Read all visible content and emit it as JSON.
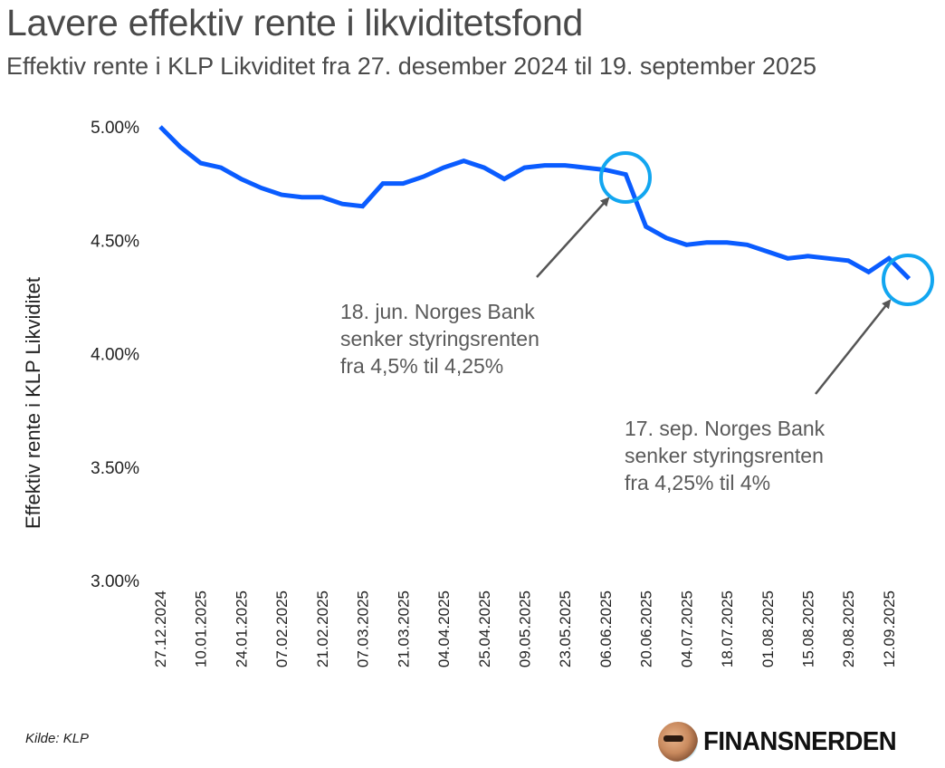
{
  "header": {
    "title": "Lavere effektiv rente i likviditetsfond",
    "subtitle": "Effektiv rente i KLP Likviditet fra 27. desember 2024  til 19. september 2025"
  },
  "footer": {
    "source": "Kilde: KLP",
    "brand": "FINANSNERDEN",
    "brand_icon": "avatar-logo"
  },
  "colors": {
    "line": "#0a5cff",
    "highlight_circle": "#12a6f0",
    "arrow": "#555555",
    "text": "#222222",
    "annotation_text": "#5a5a5a"
  },
  "chart_data": {
    "type": "line",
    "title": "Lavere effektiv rente i likviditetsfond",
    "subtitle": "Effektiv rente i KLP Likviditet fra 27. desember 2024  til 19. september 2025",
    "xlabel": "",
    "ylabel": "Effektiv rente i KLP Likviditet",
    "ylim": [
      3.0,
      5.0
    ],
    "yticks": [
      5.0,
      4.5,
      4.0,
      3.5,
      3.0
    ],
    "ytick_labels": [
      "5.00%",
      "4.50%",
      "4.00%",
      "3.50%",
      "3.00%"
    ],
    "xtick_labels": [
      "27.12.2024",
      "10.01.2025",
      "24.01.2025",
      "07.02.2025",
      "21.02.2025",
      "07.03.2025",
      "21.03.2025",
      "04.04.2025",
      "25.04.2025",
      "09.05.2025",
      "23.05.2025",
      "06.06.2025",
      "20.06.2025",
      "04.07.2025",
      "18.07.2025",
      "01.08.2025",
      "15.08.2025",
      "29.08.2025",
      "12.09.2025"
    ],
    "grid": false,
    "legend": "none",
    "series": [
      {
        "name": "Effektiv rente KLP Likviditet (%)",
        "x_start": "27.12.2024",
        "x_end": "19.09.2025",
        "frequency": "weekly",
        "values": [
          5.0,
          4.91,
          4.84,
          4.82,
          4.77,
          4.73,
          4.7,
          4.69,
          4.69,
          4.66,
          4.65,
          4.75,
          4.75,
          4.78,
          4.82,
          4.85,
          4.82,
          4.77,
          4.82,
          4.83,
          4.83,
          4.82,
          4.81,
          4.79,
          4.56,
          4.51,
          4.48,
          4.49,
          4.49,
          4.48,
          4.45,
          4.42,
          4.43,
          4.42,
          4.41,
          4.36,
          4.42,
          4.33
        ]
      }
    ],
    "annotations": [
      {
        "target_index": 23,
        "lines": [
          "18. jun. Norges Bank",
          "senker styringsrenten",
          "fra 4,5% til 4,25%"
        ]
      },
      {
        "target_index": 37,
        "lines": [
          "17. sep. Norges Bank",
          "senker styringsrenten",
          "fra 4,25% til 4%"
        ]
      }
    ]
  }
}
